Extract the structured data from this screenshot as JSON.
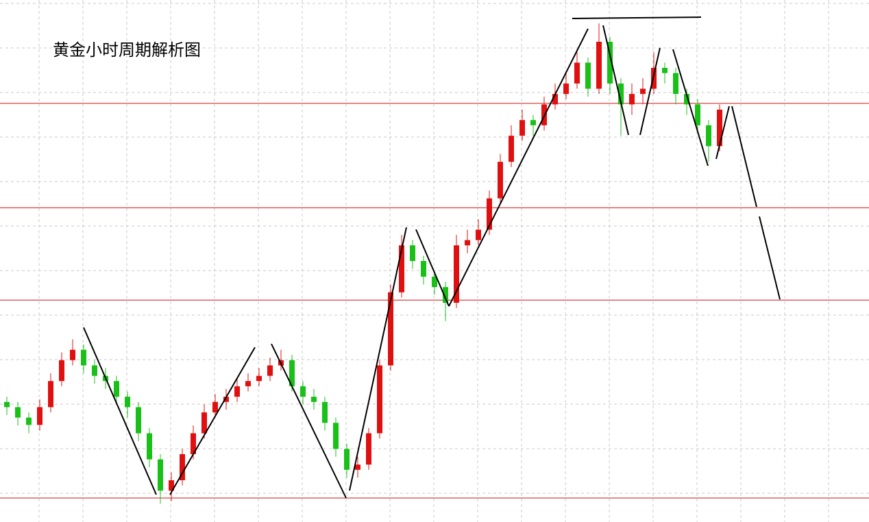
{
  "chart_data": {
    "type": "candlestick",
    "title": "黄金小时周期解析图",
    "ylim": [
      0,
      100
    ],
    "grid": true,
    "up_color": "#e01010",
    "down_color": "#18c018",
    "level_color": "#d01010",
    "levels": [
      80.2,
      60.2,
      42.5,
      4.6
    ],
    "open": [
      23,
      22,
      20,
      18.6,
      22,
      27,
      31,
      33,
      30,
      28,
      27,
      24,
      22,
      17,
      12,
      6,
      8,
      13,
      17,
      21,
      23,
      24,
      26,
      27,
      28,
      30,
      31,
      26,
      24,
      23,
      19,
      14,
      10,
      11,
      17,
      30,
      44,
      53,
      50,
      47,
      45,
      42,
      53,
      54,
      56,
      62,
      69,
      74,
      77,
      76,
      80,
      82,
      84,
      88,
      83,
      92,
      84,
      80,
      82,
      83,
      87,
      86,
      82,
      80,
      76,
      72
    ],
    "high": [
      24,
      23,
      21,
      23.5,
      28.5,
      32.5,
      35,
      34,
      31,
      29.5,
      28,
      25,
      23,
      18,
      13,
      9.5,
      14,
      18.5,
      22.5,
      24.5,
      25.5,
      27.5,
      28.5,
      29.5,
      31.5,
      33,
      32,
      27,
      25.5,
      24,
      20,
      15,
      12.5,
      18,
      31,
      45.5,
      55,
      54,
      51,
      48,
      46,
      55,
      56,
      58,
      63.5,
      70.5,
      76,
      79,
      78,
      81.5,
      84,
      86,
      90,
      89,
      95.5,
      93,
      85,
      84,
      85,
      90,
      88,
      87,
      83,
      81,
      77,
      80
    ],
    "low": [
      20.5,
      18.5,
      17,
      17.5,
      21,
      26,
      30,
      28.5,
      26.5,
      25.5,
      22.5,
      20,
      15.5,
      10.5,
      3.5,
      4,
      7,
      12,
      16,
      20,
      21.5,
      23,
      25,
      26,
      27,
      29,
      25,
      22.5,
      21.5,
      17.5,
      12.5,
      8.5,
      8.5,
      10,
      16,
      29,
      43,
      48.5,
      45.5,
      43.5,
      38.5,
      41,
      51.5,
      53,
      55,
      61,
      68,
      73,
      74,
      75,
      79,
      81,
      83,
      81.5,
      82,
      82,
      74,
      78,
      80,
      82,
      84,
      80,
      78,
      74.5,
      69,
      71
    ],
    "close": [
      22,
      20,
      18.6,
      22,
      27,
      31,
      33,
      30,
      28,
      27,
      24,
      22,
      17,
      12,
      6,
      8,
      13,
      17,
      21,
      23,
      24,
      26,
      27,
      28,
      30,
      31,
      26,
      24,
      23,
      19,
      14,
      10,
      11,
      17,
      30,
      44,
      53,
      50,
      47,
      45,
      42,
      53,
      54,
      56,
      62,
      69,
      74,
      77,
      76,
      80,
      82,
      84,
      88,
      83,
      92,
      84,
      80,
      82,
      83,
      87,
      86,
      82,
      80,
      76,
      72,
      79
    ]
  }
}
